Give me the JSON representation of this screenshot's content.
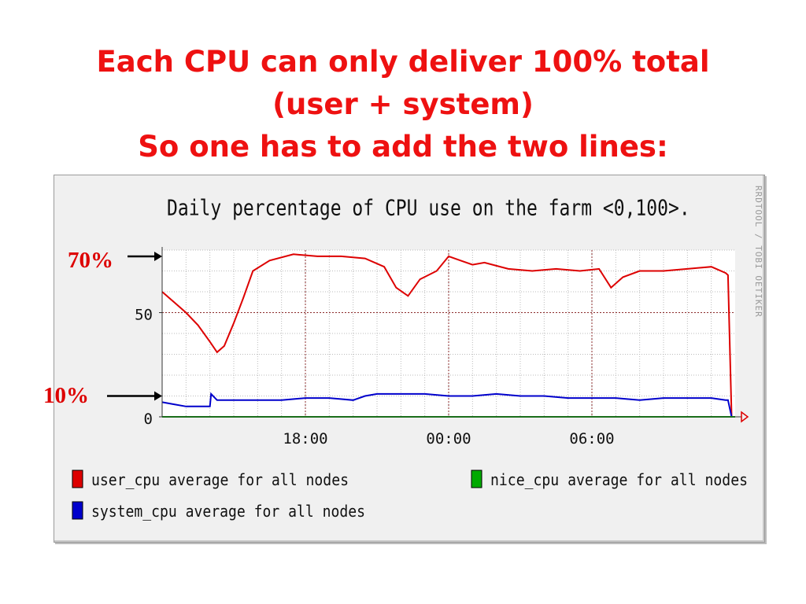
{
  "slide": {
    "title_lines": [
      "Each CPU can only deliver 100% total",
      "(user + system)",
      "So one has to add the two lines:"
    ]
  },
  "annotations": [
    {
      "label": "70%",
      "y_value": 77
    },
    {
      "label": "10%",
      "y_value": 10
    }
  ],
  "chart_data": {
    "type": "line",
    "title": "Daily percentage of CPU use on the farm <0,100>.",
    "watermark": "RRDTOOL / TOBI OETIKER",
    "ylim": [
      0,
      80
    ],
    "xlim": [
      0,
      24
    ],
    "y_ticks": [
      {
        "value": 0,
        "label": "0"
      },
      {
        "value": 50,
        "label": "50"
      }
    ],
    "x_ticks": [
      {
        "value": 6,
        "label": "18:00"
      },
      {
        "value": 12,
        "label": "00:00"
      },
      {
        "value": 18,
        "label": "06:00"
      }
    ],
    "grid": true,
    "legend_position": "bottom",
    "colors": {
      "user": "#dd0000",
      "system": "#0000cc",
      "nice": "#00aa00",
      "major_grid": "#8b2b2b",
      "minor_grid": "#bbbbbb"
    },
    "series": [
      {
        "key": "user",
        "name": "user_cpu average for all nodes",
        "color": "#dd0000",
        "x": [
          0,
          0.5,
          1,
          1.5,
          2,
          2.3,
          2.6,
          3,
          3.4,
          3.8,
          4.5,
          5.5,
          6.5,
          7.5,
          8.5,
          9.3,
          9.8,
          10.3,
          10.8,
          11.5,
          12,
          12.5,
          13,
          13.5,
          14.5,
          15.5,
          16.5,
          17.5,
          18.3,
          18.8,
          19.3,
          20,
          21,
          22,
          23,
          23.6,
          23.7,
          23.85,
          24
        ],
        "values": [
          60,
          55,
          50,
          44,
          36,
          31,
          34,
          45,
          57,
          70,
          75,
          78,
          77,
          77,
          76,
          72,
          62,
          58,
          66,
          70,
          77,
          75,
          73,
          74,
          71,
          70,
          71,
          70,
          71,
          62,
          67,
          70,
          70,
          71,
          72,
          69,
          68,
          0,
          0
        ]
      },
      {
        "key": "system",
        "name": "system_cpu average for all nodes",
        "color": "#0000cc",
        "x": [
          0,
          0.5,
          1,
          1.5,
          2,
          2.05,
          2.3,
          3,
          4,
          5,
          6,
          7,
          8,
          8.5,
          9,
          10,
          11,
          12,
          13,
          14,
          15,
          16,
          17,
          18,
          19,
          20,
          21,
          22,
          23,
          23.6,
          23.7,
          23.85,
          24
        ],
        "values": [
          7,
          6,
          5,
          5,
          5,
          11,
          8,
          8,
          8,
          8,
          9,
          9,
          8,
          10,
          11,
          11,
          11,
          10,
          10,
          11,
          10,
          10,
          9,
          9,
          9,
          8,
          9,
          9,
          9,
          8,
          8,
          0,
          0
        ]
      },
      {
        "key": "nice",
        "name": "nice_cpu average for all nodes",
        "color": "#00aa00",
        "x": [
          0,
          24
        ],
        "values": [
          0,
          0
        ]
      }
    ]
  }
}
